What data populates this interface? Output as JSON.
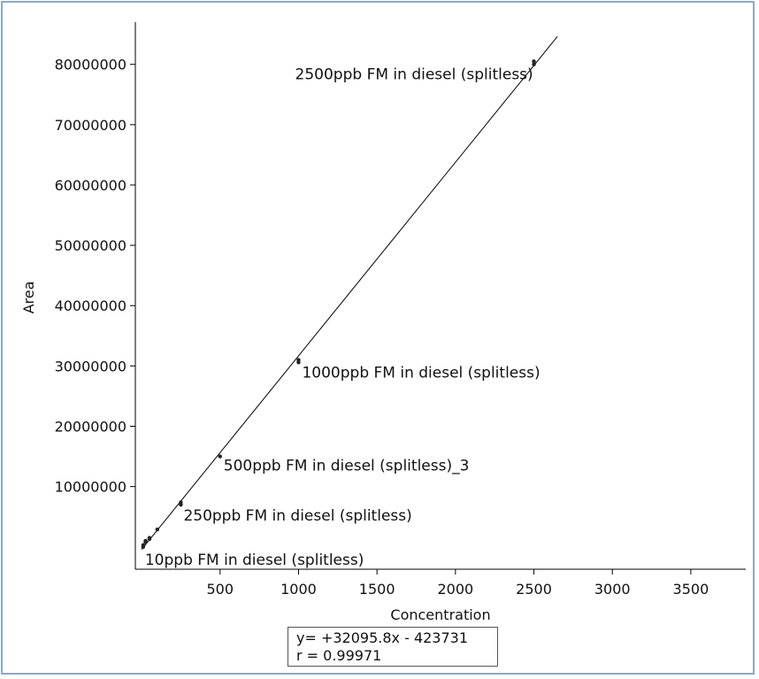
{
  "chart_data": {
    "type": "scatter",
    "xlabel": "Concentration",
    "ylabel": "Area",
    "xlim": [
      -40,
      3850
    ],
    "ylim": [
      -3700000,
      87000000
    ],
    "x_ticks": [
      500,
      1000,
      1500,
      2000,
      2500,
      3000,
      3500
    ],
    "x_tick_labels": [
      "500",
      "1000",
      "1500",
      "2000",
      "2500",
      "3000",
      "3500"
    ],
    "y_ticks": [
      10000000,
      20000000,
      30000000,
      40000000,
      50000000,
      60000000,
      70000000,
      80000000
    ],
    "y_tick_labels": [
      "10000000",
      "20000000",
      "30000000",
      "40000000",
      "50000000",
      "60000000",
      "70000000",
      "80000000"
    ],
    "grid": false,
    "series": [
      {
        "points": [
          {
            "x": 10,
            "y": 0
          },
          {
            "x": 10,
            "y": 300000
          },
          {
            "x": 25,
            "y": 800000
          },
          {
            "x": 25,
            "y": 1000000
          },
          {
            "x": 50,
            "y": 1300000
          },
          {
            "x": 50,
            "y": 1500000
          },
          {
            "x": 100,
            "y": 2900000
          },
          {
            "x": 250,
            "y": 7000000
          },
          {
            "x": 250,
            "y": 7400000
          },
          {
            "x": 500,
            "y": 15000000
          },
          {
            "x": 1000,
            "y": 30600000
          },
          {
            "x": 1000,
            "y": 31000000
          },
          {
            "x": 2500,
            "y": 80000000
          },
          {
            "x": 2500,
            "y": 80500000
          }
        ]
      }
    ],
    "fit_line": {
      "slope": 32095.8,
      "intercept": -423731,
      "x_range": [
        0,
        2650
      ]
    },
    "annotations": [
      {
        "text": "2500ppb FM in diesel (splitless)",
        "x": 2500,
        "y": 80000000
      },
      {
        "text": "1000ppb FM in diesel (splitless)",
        "x": 1000,
        "y": 30600000
      },
      {
        "text": "500ppb FM in diesel (splitless)_3",
        "x": 500,
        "y": 15000000
      },
      {
        "text": "250ppb FM in diesel (splitless)",
        "x": 250,
        "y": 7000000
      },
      {
        "text": "10ppb FM in diesel (splitless)",
        "x": 10,
        "y": 0
      }
    ],
    "equation_lines": [
      "y= +32095.8x - 423731",
      "r = 0.99971"
    ]
  }
}
